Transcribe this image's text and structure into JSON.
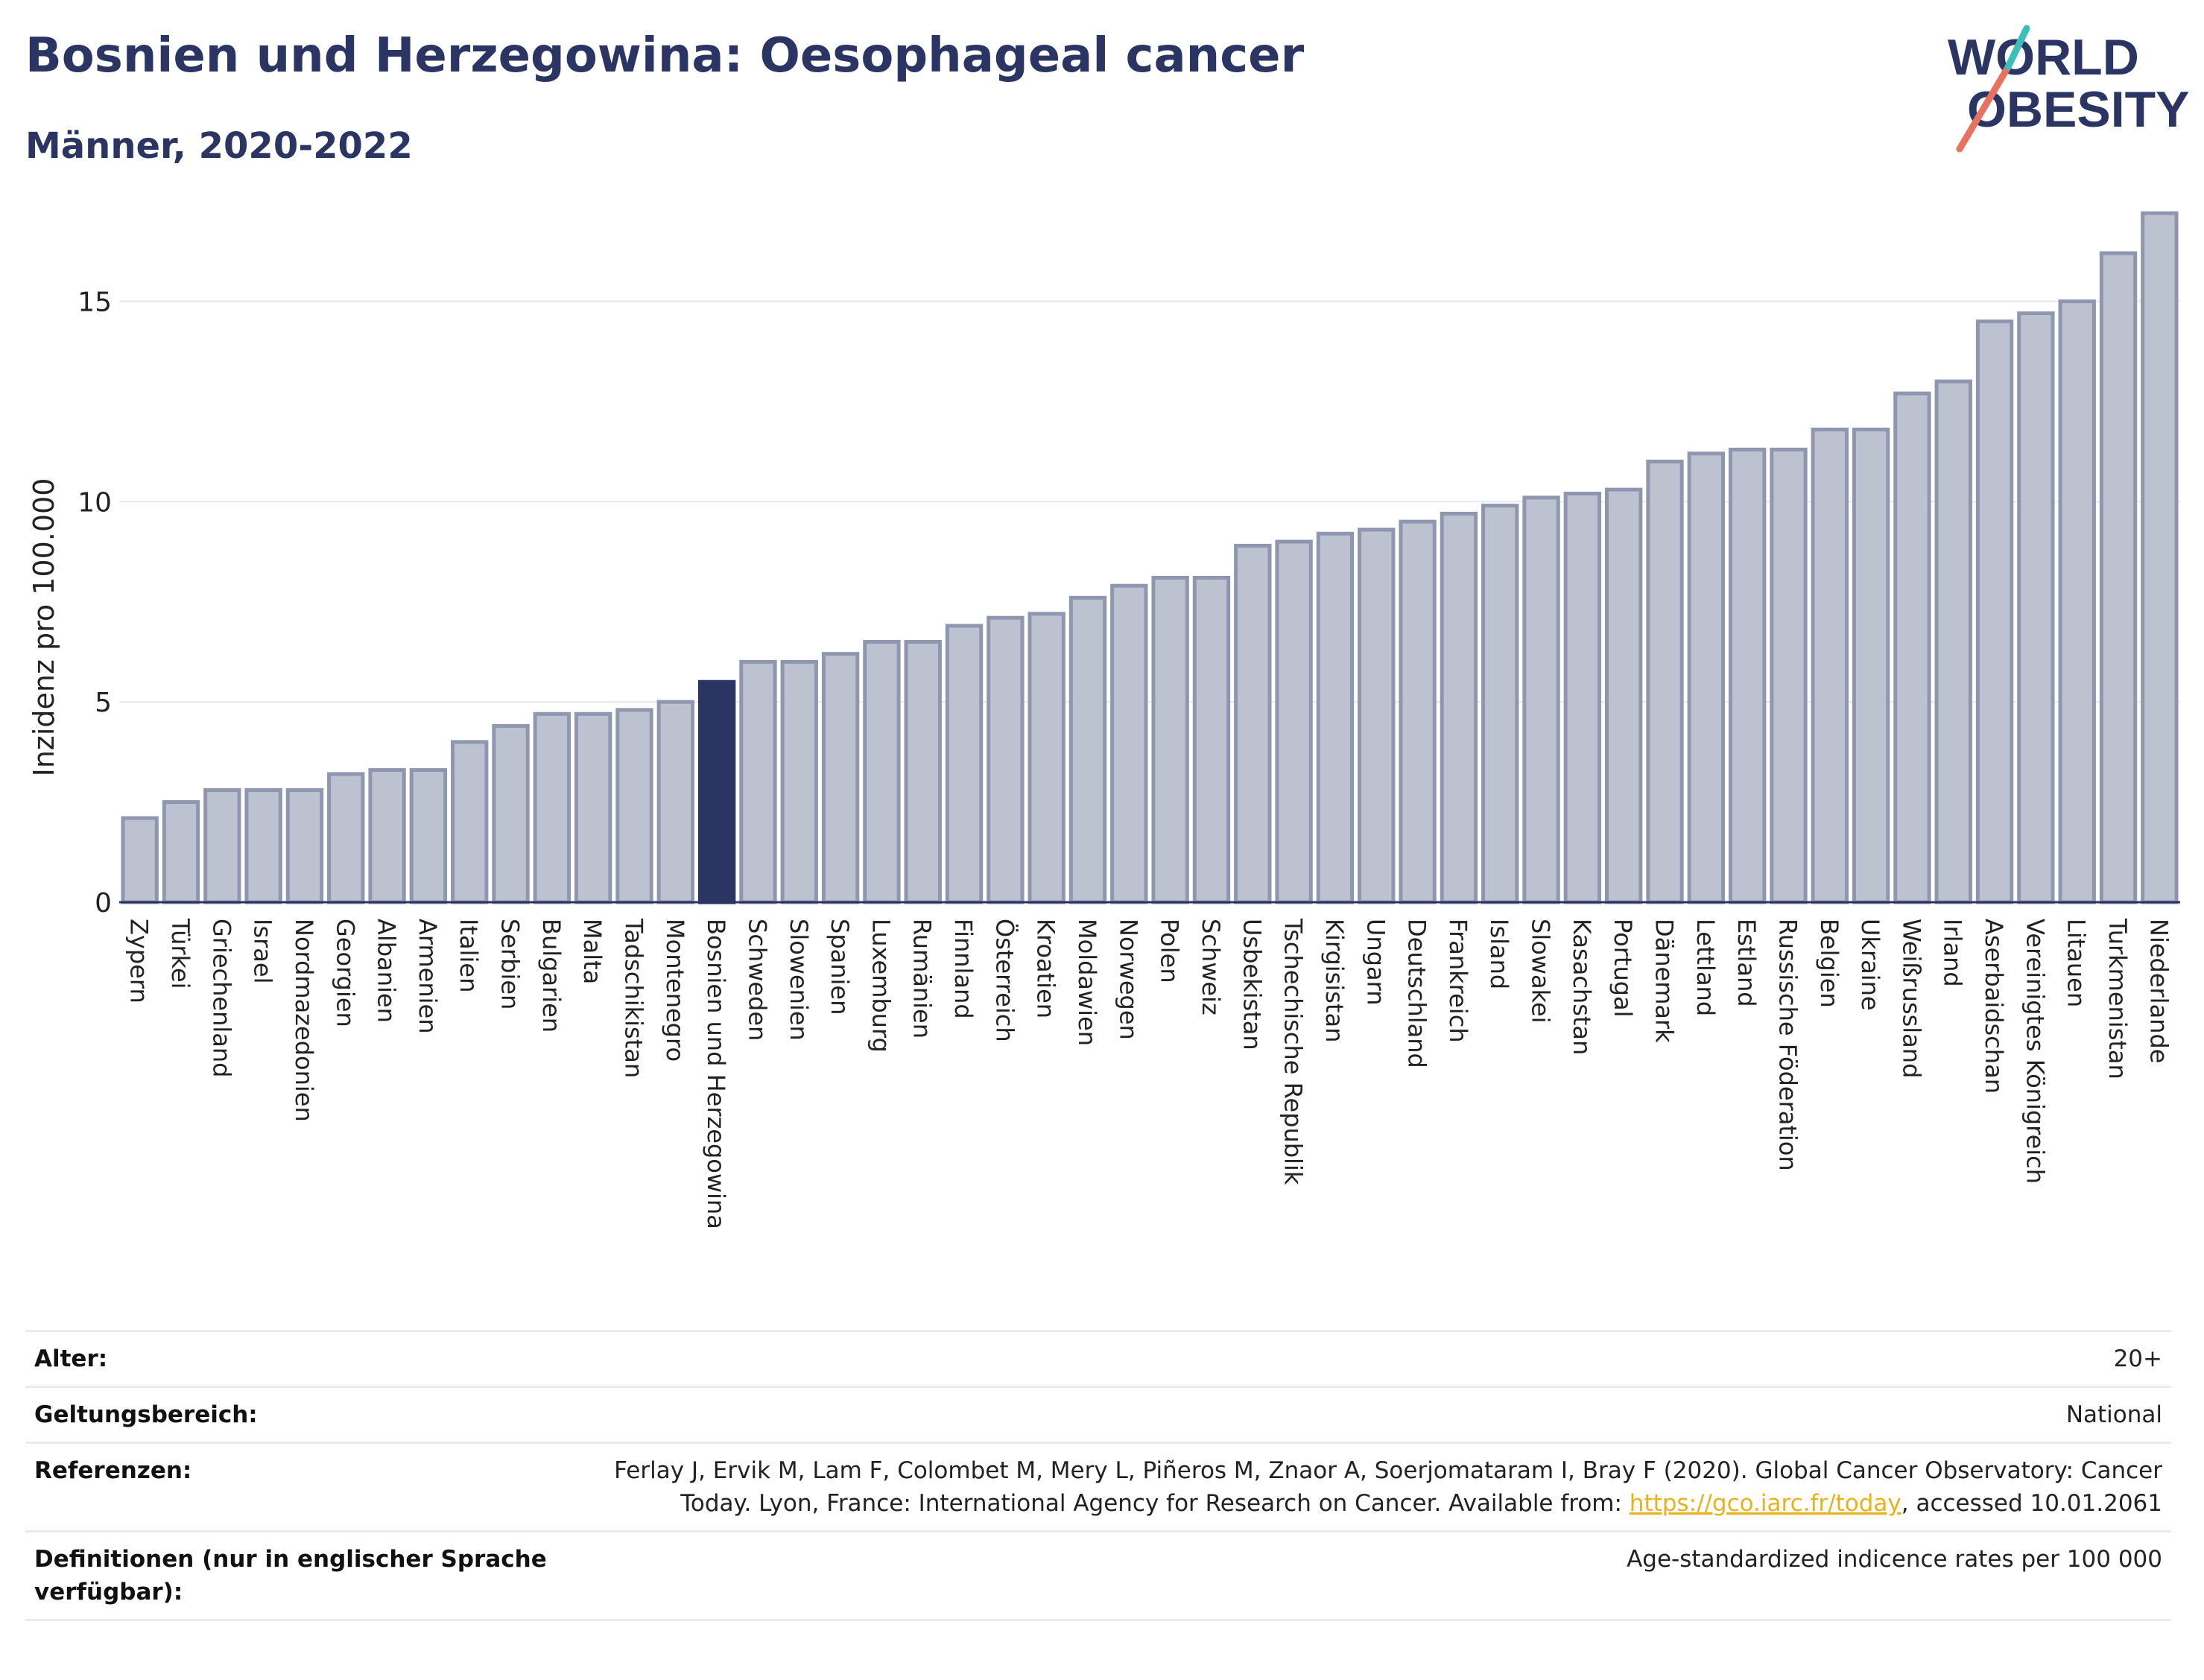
{
  "header": {
    "title": "Bosnien und Herzegowina: Oesophageal cancer",
    "subtitle": "Männer, 2020-2022"
  },
  "logo": {
    "line1": "WORLD",
    "line2": "OBESITY"
  },
  "colors": {
    "bar": "#bdc2d1",
    "bar_stroke": "#8f96b0",
    "highlight": "#2b3563",
    "title": "#2b3563",
    "grid": "#e6e8ee"
  },
  "chart_data": {
    "type": "bar",
    "ylabel": "Inzidenz pro 100.000",
    "ylim": [
      0,
      17.5
    ],
    "yticks": [
      0,
      5,
      10,
      15
    ],
    "highlight": "Bosnien und Herzegowina",
    "categories": [
      "Zypern",
      "Türkei",
      "Griechenland",
      "Israel",
      "Nordmazedonien",
      "Georgien",
      "Albanien",
      "Armenien",
      "Italien",
      "Serbien",
      "Bulgarien",
      "Malta",
      "Tadschikistan",
      "Montenegro",
      "Bosnien und Herzegowina",
      "Schweden",
      "Slowenien",
      "Spanien",
      "Luxemburg",
      "Rumänien",
      "Finnland",
      "Österreich",
      "Kroatien",
      "Moldawien",
      "Norwegen",
      "Polen",
      "Schweiz",
      "Usbekistan",
      "Tschechische Republik",
      "Kirgisistan",
      "Ungarn",
      "Deutschland",
      "Frankreich",
      "Island",
      "Slowakei",
      "Kasachstan",
      "Portugal",
      "Dänemark",
      "Lettland",
      "Estland",
      "Russische Föderation",
      "Belgien",
      "Ukraine",
      "Weißrussland",
      "Irland",
      "Aserbaidschan",
      "Vereinigtes Königreich",
      "Litauen",
      "Turkmenistan",
      "Niederlande"
    ],
    "values": [
      2.1,
      2.5,
      2.8,
      2.8,
      2.8,
      3.2,
      3.3,
      3.3,
      4.0,
      4.4,
      4.7,
      4.7,
      4.8,
      5.0,
      5.5,
      6.0,
      6.0,
      6.2,
      6.5,
      6.5,
      6.9,
      7.1,
      7.2,
      7.6,
      7.9,
      8.1,
      8.1,
      8.9,
      9.0,
      9.2,
      9.3,
      9.5,
      9.7,
      9.9,
      10.1,
      10.2,
      10.3,
      11.0,
      11.2,
      11.3,
      11.3,
      11.8,
      11.8,
      12.7,
      13.0,
      14.5,
      14.7,
      15.0,
      16.2,
      17.2
    ]
  },
  "meta": [
    {
      "key": "Alter:",
      "value": "20+"
    },
    {
      "key": "Geltungsbereich:",
      "value": "National"
    },
    {
      "key": "Referenzen:",
      "value_line1": "Ferlay J, Ervik M, Lam F, Colombet M, Mery L, Piñeros M, Znaor A, Soerjomataram I, Bray F (2020). Global Cancer Observatory: Cancer",
      "value_line2_pre": "Today. Lyon, France: International Agency for Research on Cancer. Available from: ",
      "link": "https://gco.iarc.fr/today",
      "value_line2_post": ", accessed 10.01.2061"
    },
    {
      "key": "Definitionen (nur in englischer Sprache verfügbar):",
      "value": "Age-standardized indicence rates per 100 000"
    }
  ]
}
